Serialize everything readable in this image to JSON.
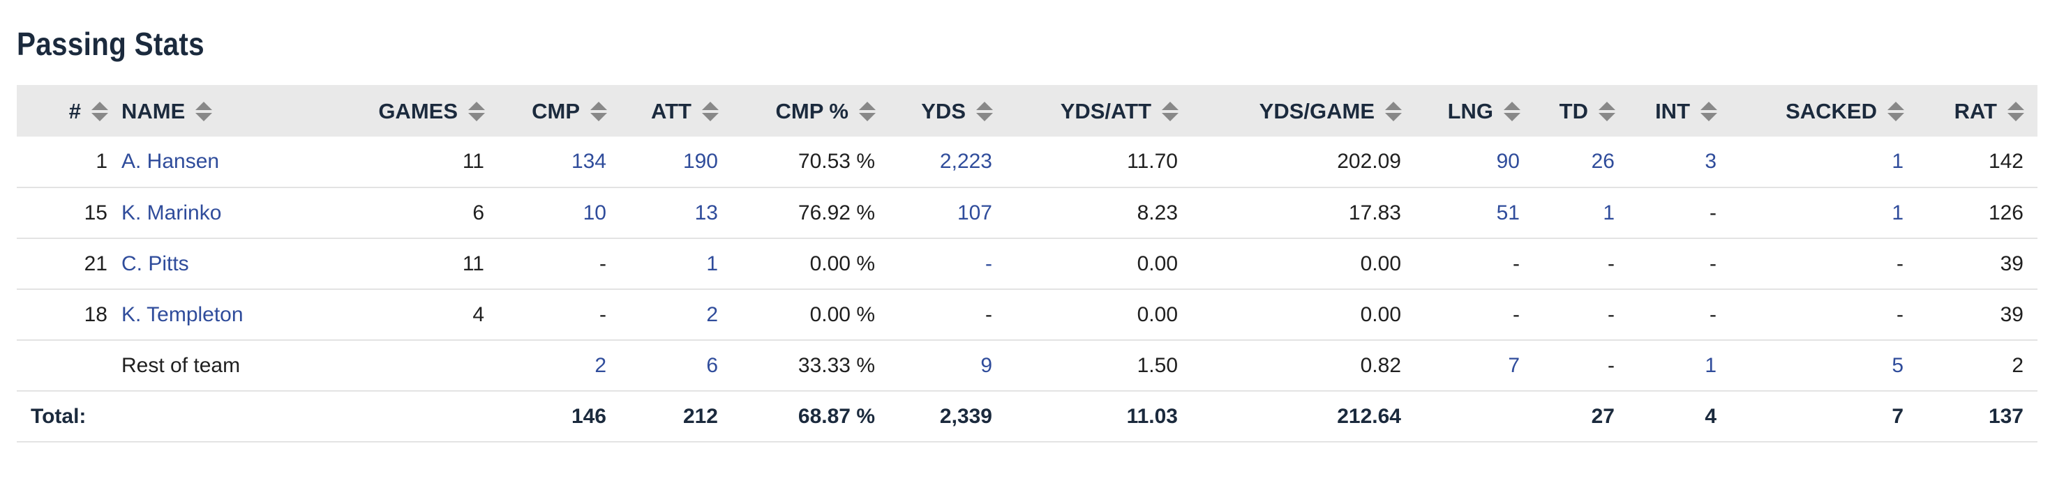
{
  "page": {
    "title": "Passing Stats"
  },
  "table": {
    "headers": [
      "#",
      "NAME",
      "GAMES",
      "CMP",
      "ATT",
      "CMP %",
      "YDS",
      "YDS/ATT",
      "YDS/GAME",
      "LNG",
      "TD",
      "INT",
      "SACKED",
      "RAT"
    ],
    "rows": [
      [
        "1",
        "A. Hansen",
        "11",
        "134",
        "190",
        "70.53 %",
        "2,223",
        "11.70",
        "202.09",
        "90",
        "26",
        "3",
        "1",
        "142"
      ],
      [
        "15",
        "K. Marinko",
        "6",
        "10",
        "13",
        "76.92 %",
        "107",
        "8.23",
        "17.83",
        "51",
        "1",
        "-",
        "1",
        "126"
      ],
      [
        "21",
        "C. Pitts",
        "11",
        "-",
        "1",
        "0.00 %",
        "-",
        "0.00",
        "0.00",
        "-",
        "-",
        "-",
        "-",
        "39"
      ],
      [
        "18",
        "K. Templeton",
        "4",
        "-",
        "2",
        "0.00 %",
        "-",
        "0.00",
        "0.00",
        "-",
        "-",
        "-",
        "-",
        "39"
      ],
      [
        "",
        "Rest of team",
        "",
        "2",
        "6",
        "33.33 %",
        "9",
        "1.50",
        "0.82",
        "7",
        "-",
        "1",
        "5",
        "2"
      ]
    ],
    "total": {
      "label": "Total:",
      "values": [
        "146",
        "212",
        "68.87 %",
        "2,339",
        "11.03",
        "212.64",
        "",
        "27",
        "4",
        "7",
        "137"
      ]
    },
    "colors": {
      "link": "#2f4c9b",
      "header_bg": "#e9e9e9",
      "title": "#1b2a3d"
    }
  }
}
